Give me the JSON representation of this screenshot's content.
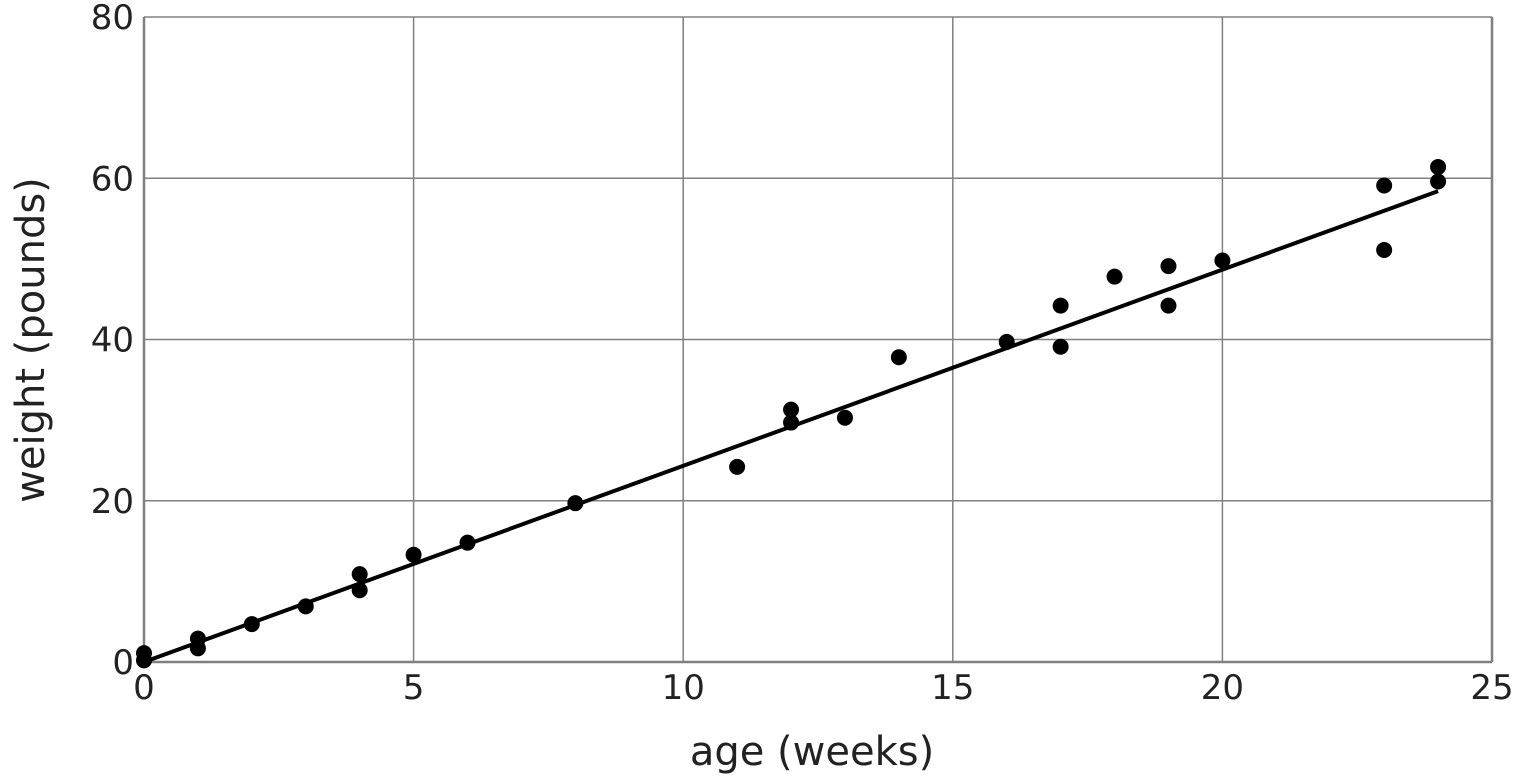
{
  "chart_data": {
    "type": "scatter",
    "title": "",
    "xlabel": "age (weeks)",
    "ylabel": "weight (pounds)",
    "xlim": [
      0,
      25
    ],
    "ylim": [
      0,
      80
    ],
    "xticks": [
      0,
      5,
      10,
      15,
      20,
      25
    ],
    "yticks": [
      0,
      20,
      40,
      60,
      80
    ],
    "grid": true,
    "points": [
      [
        0,
        1.1
      ],
      [
        0,
        0.2
      ],
      [
        1,
        2.9
      ],
      [
        1,
        1.7
      ],
      [
        2,
        4.7
      ],
      [
        3,
        6.9
      ],
      [
        4,
        10.9
      ],
      [
        4,
        8.9
      ],
      [
        5,
        13.3
      ],
      [
        6,
        14.8
      ],
      [
        8,
        19.7
      ],
      [
        11,
        24.2
      ],
      [
        12,
        31.3
      ],
      [
        12,
        29.7
      ],
      [
        13,
        30.3
      ],
      [
        14,
        37.8
      ],
      [
        16,
        39.7
      ],
      [
        17,
        44.2
      ],
      [
        17,
        39.1
      ],
      [
        18,
        47.8
      ],
      [
        19,
        49.1
      ],
      [
        19,
        44.2
      ],
      [
        20,
        49.8
      ],
      [
        23,
        59.1
      ],
      [
        23,
        51.1
      ],
      [
        24,
        61.4
      ],
      [
        24,
        59.6
      ]
    ],
    "fit_line": {
      "x": [
        0,
        24
      ],
      "y": [
        0,
        58.4
      ]
    },
    "colors": {
      "points": "#000000",
      "line": "#000000",
      "grid": "#808080"
    }
  }
}
